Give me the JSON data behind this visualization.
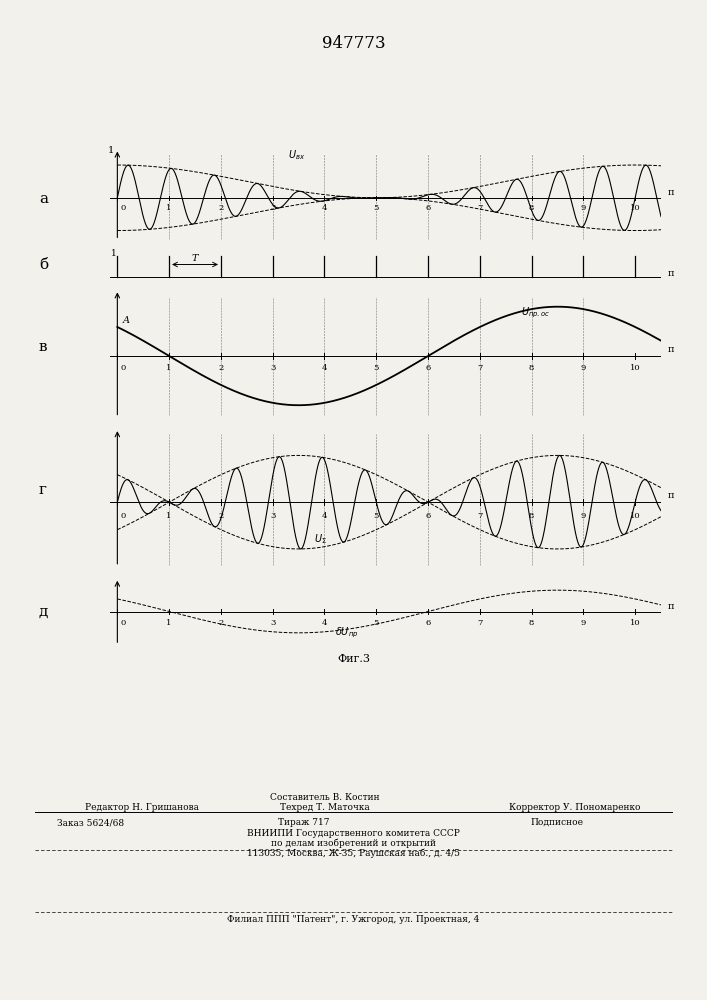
{
  "title": "947773",
  "fig_label": "Фиг.3",
  "signal_color": "#000000",
  "dashed_color": "#000000",
  "background_color": "#f2f1ec",
  "bottom_line1_center": "Составитель В. Костин",
  "bottom_line2_left": "Редактор Н. Гришанова",
  "bottom_line2_center": "Техред Т. Маточка",
  "bottom_line2_right": "Корректор У. Пономаренко",
  "bottom_line3_left": "Заказ 5624/68",
  "bottom_line3_center": "Тираж 717",
  "bottom_line3_right": "Подписное",
  "bottom_line4": "ВНИИПИ Государственного комитета СССР",
  "bottom_line5": "по делам изобретений и открытий",
  "bottom_line6": "113035, Москва, Ж-35, Раушская наб., д. 4/5",
  "bottom_line7": "Филиал ППП \"Патент\", г. Ужгород, ул. Проектная, 4",
  "omega_high": 7.5398,
  "omega_slow": 0.6283,
  "phase_slow": -1.2566
}
